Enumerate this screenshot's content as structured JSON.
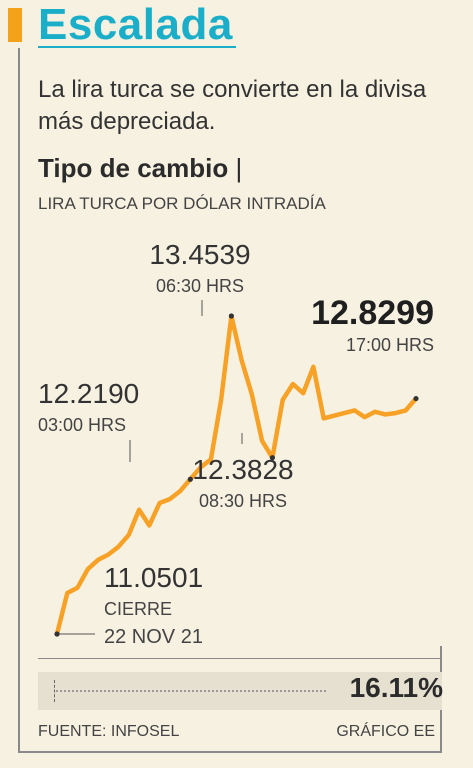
{
  "header": {
    "title": "Escalada",
    "subtitle": "La lira turca se convierte en la divisa más depreciada."
  },
  "colors": {
    "accent": "#f5a21b",
    "title": "#1aaec9",
    "line": "#f7a226",
    "point": "#333333"
  },
  "chart_data": {
    "type": "line",
    "title": "Tipo de cambio",
    "subtitle": "LIRA TURCA POR DÓLAR INTRADÍA",
    "xlabel": "",
    "ylabel": "",
    "grid": false,
    "legend": "none",
    "series": [
      {
        "values": [
          11.0501,
          11.36,
          11.4,
          11.54,
          11.61,
          11.65,
          11.71,
          11.8,
          11.99,
          11.87,
          12.04,
          12.07,
          12.13,
          12.22,
          12.31,
          12.37,
          12.82,
          13.4539,
          13.12,
          12.86,
          12.51,
          12.3828,
          12.82,
          12.94,
          12.87,
          13.07,
          12.68,
          12.7,
          12.72,
          12.74,
          12.69,
          12.73,
          12.71,
          12.72,
          12.74,
          12.8299
        ]
      }
    ],
    "annotations": [
      {
        "index": 0,
        "value": "11.0501",
        "label1": "CIERRE",
        "label2": "22 NOV 21"
      },
      {
        "index": 13,
        "value": "12.2190",
        "label1": "03:00 HRS"
      },
      {
        "index": 17,
        "value": "13.4539",
        "label1": "06:30 HRS"
      },
      {
        "index": 21,
        "value": "12.3828",
        "label1": "08:30 HRS"
      },
      {
        "index": 35,
        "value": "12.8299",
        "label1": "17:00 HRS"
      }
    ],
    "change": "16.11%"
  },
  "footer": {
    "source": "FUENTE: INFOSEL",
    "credit": "GRÁFICO EE"
  }
}
